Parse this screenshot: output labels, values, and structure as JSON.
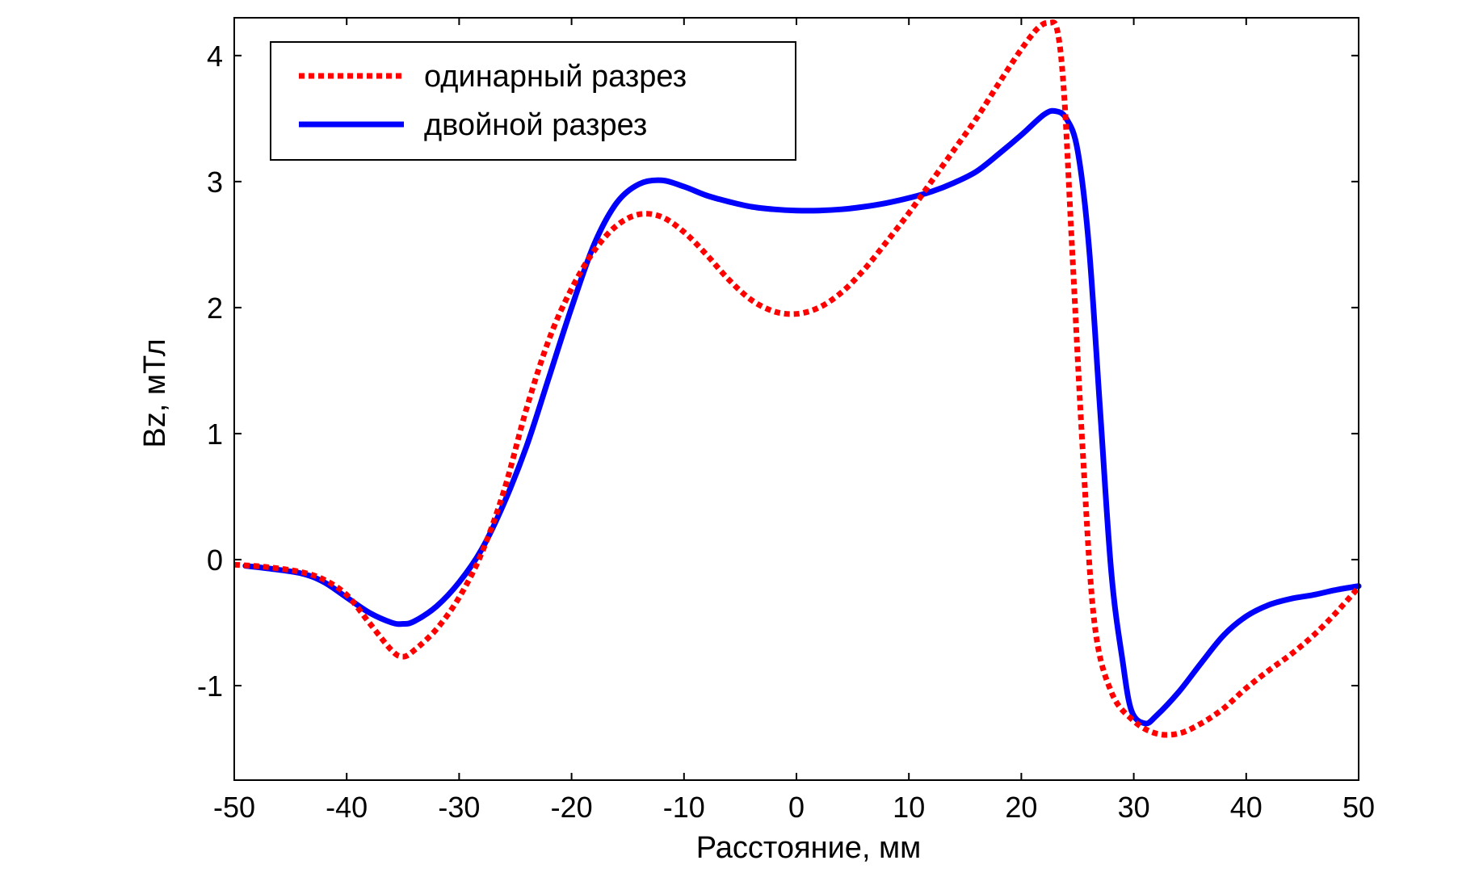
{
  "chart_data": {
    "type": "line",
    "title": "",
    "xlabel": "Расстояние, мм",
    "ylabel": "Bz, мТл",
    "xlim": [
      -50,
      50
    ],
    "ylim": [
      -1.75,
      4.3
    ],
    "xticks": [
      -50,
      -40,
      -30,
      -20,
      -10,
      0,
      10,
      20,
      30,
      40,
      50
    ],
    "xtick_labels": [
      "-50",
      "-40",
      "-30",
      "-20",
      "-10",
      "0",
      "10",
      "20",
      "30",
      "40",
      "50"
    ],
    "yticks": [
      -1,
      0,
      1,
      2,
      3,
      4
    ],
    "ytick_labels": [
      "-1",
      "0",
      "1",
      "2",
      "3",
      "4"
    ],
    "grid": false,
    "legend_position": "top-left",
    "series": [
      {
        "name": "одинарный разрез",
        "color": "#ff0000",
        "style": "dotted",
        "points": [
          [
            -50,
            -0.04
          ],
          [
            -47,
            -0.06
          ],
          [
            -44,
            -0.1
          ],
          [
            -42,
            -0.16
          ],
          [
            -40,
            -0.28
          ],
          [
            -38,
            -0.5
          ],
          [
            -36,
            -0.72
          ],
          [
            -35,
            -0.77
          ],
          [
            -34,
            -0.72
          ],
          [
            -32,
            -0.55
          ],
          [
            -30,
            -0.3
          ],
          [
            -28,
            0.05
          ],
          [
            -26,
            0.55
          ],
          [
            -24,
            1.2
          ],
          [
            -22,
            1.75
          ],
          [
            -20,
            2.15
          ],
          [
            -18,
            2.45
          ],
          [
            -16,
            2.65
          ],
          [
            -14,
            2.74
          ],
          [
            -12,
            2.72
          ],
          [
            -10,
            2.6
          ],
          [
            -8,
            2.42
          ],
          [
            -6,
            2.22
          ],
          [
            -4,
            2.06
          ],
          [
            -2,
            1.97
          ],
          [
            0,
            1.95
          ],
          [
            2,
            2.0
          ],
          [
            4,
            2.12
          ],
          [
            6,
            2.3
          ],
          [
            8,
            2.52
          ],
          [
            10,
            2.75
          ],
          [
            12,
            3.0
          ],
          [
            14,
            3.25
          ],
          [
            16,
            3.5
          ],
          [
            18,
            3.78
          ],
          [
            20,
            4.05
          ],
          [
            21.5,
            4.22
          ],
          [
            22.5,
            4.26
          ],
          [
            23.2,
            4.2
          ],
          [
            23.8,
            3.7
          ],
          [
            24.5,
            2.5
          ],
          [
            25.5,
            0.8
          ],
          [
            26.5,
            -0.5
          ],
          [
            28,
            -1.05
          ],
          [
            30,
            -1.28
          ],
          [
            32,
            -1.38
          ],
          [
            34,
            -1.38
          ],
          [
            36,
            -1.3
          ],
          [
            38,
            -1.18
          ],
          [
            40,
            -1.02
          ],
          [
            42,
            -0.88
          ],
          [
            44,
            -0.75
          ],
          [
            46,
            -0.6
          ],
          [
            48,
            -0.42
          ],
          [
            50,
            -0.22
          ]
        ]
      },
      {
        "name": "двойной разрез",
        "color": "#0000ff",
        "style": "solid",
        "points": [
          [
            -49,
            -0.05
          ],
          [
            -47,
            -0.07
          ],
          [
            -44,
            -0.11
          ],
          [
            -42,
            -0.18
          ],
          [
            -40,
            -0.3
          ],
          [
            -38,
            -0.42
          ],
          [
            -36,
            -0.5
          ],
          [
            -35,
            -0.51
          ],
          [
            -34,
            -0.49
          ],
          [
            -32,
            -0.37
          ],
          [
            -30,
            -0.18
          ],
          [
            -28,
            0.08
          ],
          [
            -26,
            0.45
          ],
          [
            -24,
            0.9
          ],
          [
            -22,
            1.45
          ],
          [
            -20,
            2.0
          ],
          [
            -18,
            2.5
          ],
          [
            -16,
            2.83
          ],
          [
            -14,
            2.98
          ],
          [
            -12,
            3.01
          ],
          [
            -10,
            2.96
          ],
          [
            -8,
            2.89
          ],
          [
            -6,
            2.84
          ],
          [
            -4,
            2.8
          ],
          [
            -2,
            2.78
          ],
          [
            0,
            2.77
          ],
          [
            2,
            2.77
          ],
          [
            4,
            2.78
          ],
          [
            6,
            2.8
          ],
          [
            8,
            2.83
          ],
          [
            10,
            2.87
          ],
          [
            12,
            2.92
          ],
          [
            14,
            2.99
          ],
          [
            16,
            3.08
          ],
          [
            18,
            3.22
          ],
          [
            20,
            3.37
          ],
          [
            22,
            3.53
          ],
          [
            23,
            3.56
          ],
          [
            24,
            3.5
          ],
          [
            25,
            3.25
          ],
          [
            26,
            2.5
          ],
          [
            27,
            1.2
          ],
          [
            28,
            -0.1
          ],
          [
            29,
            -0.8
          ],
          [
            29.8,
            -1.2
          ],
          [
            31,
            -1.3
          ],
          [
            32,
            -1.24
          ],
          [
            34,
            -1.05
          ],
          [
            36,
            -0.82
          ],
          [
            38,
            -0.6
          ],
          [
            40,
            -0.45
          ],
          [
            42,
            -0.36
          ],
          [
            44,
            -0.31
          ],
          [
            46,
            -0.28
          ],
          [
            48,
            -0.24
          ],
          [
            50,
            -0.21
          ]
        ]
      }
    ]
  }
}
